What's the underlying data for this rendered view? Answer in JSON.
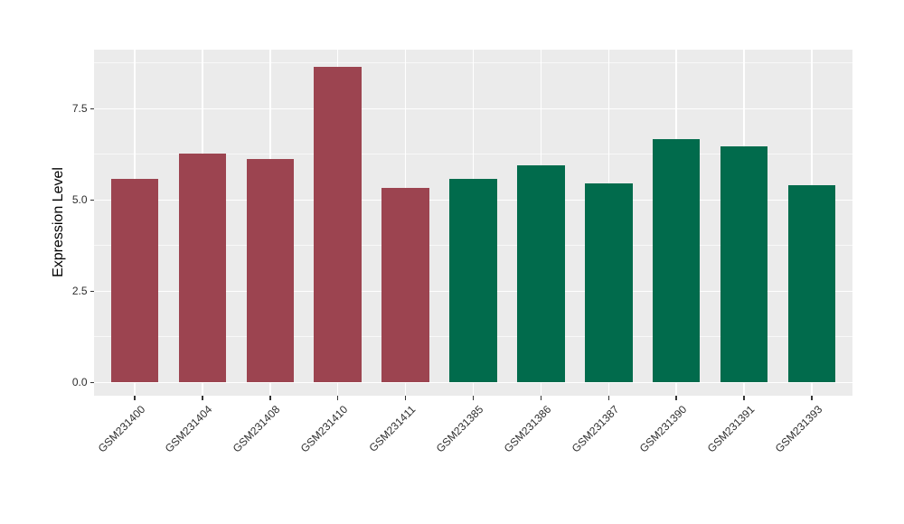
{
  "chart_data": {
    "type": "bar",
    "title": "",
    "xlabel": "",
    "ylabel": "Expression Level",
    "categories": [
      "GSM231400",
      "GSM231404",
      "GSM231408",
      "GSM231410",
      "GSM231411",
      "GSM231385",
      "GSM231386",
      "GSM231387",
      "GSM231390",
      "GSM231391",
      "GSM231393"
    ],
    "values": [
      5.58,
      6.27,
      6.12,
      8.64,
      5.34,
      5.59,
      5.94,
      5.46,
      6.66,
      6.46,
      5.4
    ],
    "groups": [
      "maroon",
      "maroon",
      "maroon",
      "maroon",
      "maroon",
      "green",
      "green",
      "green",
      "green",
      "green",
      "green"
    ],
    "group_colors": {
      "maroon": "#9C4450",
      "green": "#016B4C"
    },
    "yticks": [
      0.0,
      2.5,
      5.0,
      7.5
    ],
    "ytick_labels": [
      "0.0",
      "2.5",
      "5.0",
      "7.5"
    ],
    "yminor": [
      1.25,
      3.75,
      6.25,
      8.75
    ],
    "ylim": [
      -0.36,
      9.12
    ],
    "bar_width_fraction": 0.7,
    "grid": "major+minor",
    "legend_position": "none",
    "panel_background": "#EBEBEB",
    "grid_color": "#FFFFFF",
    "plot_background": "#FFFFFF"
  }
}
